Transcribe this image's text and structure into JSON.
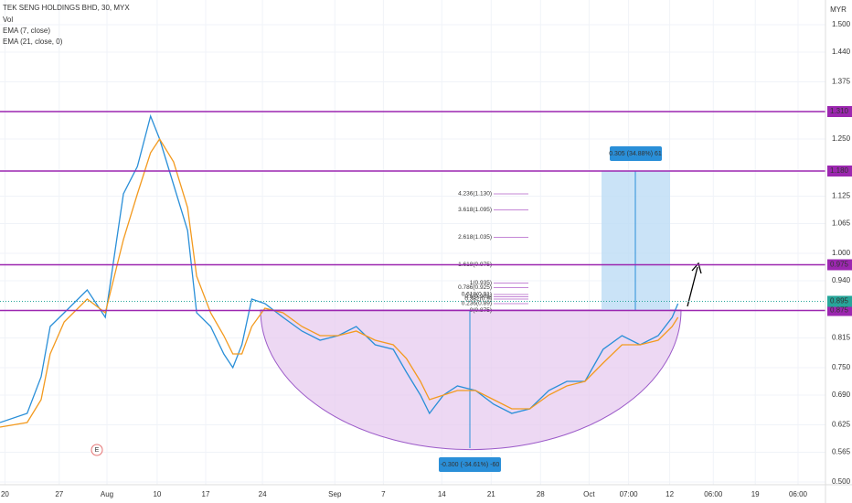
{
  "chart_data": {
    "type": "line",
    "title": "TEK SENG HOLDINGS BHD, 30, MYX",
    "indicators": [
      "Vol",
      "EMA (7, close)",
      "EMA (21, close, 0)"
    ],
    "currency": "MYR",
    "xlim": [
      0,
      100
    ],
    "ylim": [
      0.5,
      1.5
    ],
    "xticks": [
      {
        "value": 0.6,
        "label": "20"
      },
      {
        "value": 7.2,
        "label": "27"
      },
      {
        "value": 13,
        "label": "Aug"
      },
      {
        "value": 19.1,
        "label": "10"
      },
      {
        "value": 25,
        "label": "17"
      },
      {
        "value": 31.9,
        "label": "24"
      },
      {
        "value": 40.7,
        "label": "Sep"
      },
      {
        "value": 46.6,
        "label": "7"
      },
      {
        "value": 53.7,
        "label": "14"
      },
      {
        "value": 59.7,
        "label": "21"
      },
      {
        "value": 65.7,
        "label": "28"
      },
      {
        "value": 71.6,
        "label": "Oct"
      },
      {
        "value": 76.4,
        "label": "07:00"
      },
      {
        "value": 81.4,
        "label": "12"
      },
      {
        "value": 86.7,
        "label": "06:00"
      },
      {
        "value": 91.8,
        "label": "19"
      },
      {
        "value": 97,
        "label": "06:00"
      }
    ],
    "yticks": [
      {
        "value": 1.5,
        "label": "1.500"
      },
      {
        "value": 1.44,
        "label": "1.440"
      },
      {
        "value": 1.375,
        "label": "1.375"
      },
      {
        "value": 1.25,
        "label": "1.250"
      },
      {
        "value": 1.125,
        "label": "1.125"
      },
      {
        "value": 1.065,
        "label": "1.065"
      },
      {
        "value": 1,
        "label": "1.000"
      },
      {
        "value": 0.94,
        "label": "0.940"
      },
      {
        "value": 0.815,
        "label": "0.815"
      },
      {
        "value": 0.75,
        "label": "0.750"
      },
      {
        "value": 0.69,
        "label": "0.690"
      },
      {
        "value": 0.625,
        "label": "0.625"
      },
      {
        "value": 0.565,
        "label": "0.565"
      },
      {
        "value": 0.5,
        "label": "0.500"
      }
    ],
    "grid": true,
    "x": [
      0,
      3.3,
      5,
      6.1,
      7.8,
      10.6,
      12.8,
      15,
      16.7,
      18.3,
      19.4,
      21.1,
      22.8,
      23.9,
      25.6,
      27.2,
      28.3,
      29.4,
      30.6,
      32.2,
      34.4,
      36.7,
      38.9,
      41.1,
      43.3,
      45.6,
      47.8,
      49.4,
      51.1,
      52.2,
      53.9,
      55.6,
      57.8,
      60,
      62.2,
      64.4,
      66.7,
      68.9,
      71.1,
      73.3,
      75.6,
      77.8,
      80,
      81.7,
      82.4
    ],
    "series": [
      {
        "name": "EMA (7, close)",
        "color": "#2a8fd8",
        "values": [
          0.63,
          0.65,
          0.73,
          0.84,
          0.87,
          0.92,
          0.86,
          1.13,
          1.19,
          1.3,
          1.25,
          1.15,
          1.05,
          0.87,
          0.84,
          0.78,
          0.75,
          0.8,
          0.9,
          0.89,
          0.86,
          0.83,
          0.81,
          0.82,
          0.84,
          0.8,
          0.79,
          0.74,
          0.69,
          0.65,
          0.69,
          0.71,
          0.7,
          0.67,
          0.65,
          0.66,
          0.7,
          0.72,
          0.72,
          0.79,
          0.82,
          0.8,
          0.82,
          0.86,
          0.89
        ]
      },
      {
        "name": "EMA (21, close, 0)",
        "color": "#f39a1f",
        "values": [
          0.62,
          0.63,
          0.68,
          0.78,
          0.85,
          0.9,
          0.87,
          1.03,
          1.13,
          1.22,
          1.25,
          1.2,
          1.1,
          0.95,
          0.87,
          0.82,
          0.78,
          0.78,
          0.84,
          0.88,
          0.87,
          0.84,
          0.82,
          0.82,
          0.83,
          0.81,
          0.8,
          0.77,
          0.72,
          0.68,
          0.69,
          0.7,
          0.7,
          0.68,
          0.66,
          0.66,
          0.69,
          0.71,
          0.72,
          0.76,
          0.8,
          0.8,
          0.81,
          0.84,
          0.86
        ]
      }
    ],
    "levels": [
      {
        "value": 1.31,
        "label": "1.310"
      },
      {
        "value": 1.18,
        "label": "1.180"
      },
      {
        "value": 0.975,
        "label": "0.975"
      },
      {
        "value": 0.875,
        "label": "0.875"
      }
    ],
    "level_color": "#9c27b0",
    "last_price": {
      "value": 0.895,
      "label": "0.895",
      "color": "#26a69a"
    },
    "fib_levels": [
      {
        "value": 1.13,
        "label": "4.236(1.130)"
      },
      {
        "value": 1.095,
        "label": "3.618(1.095)"
      },
      {
        "value": 1.035,
        "label": "2.618(1.035)"
      },
      {
        "value": 0.975,
        "label": "1.618(0.975)"
      },
      {
        "value": 0.935,
        "label": "1(0.935)"
      },
      {
        "value": 0.925,
        "label": "0.786(0.925)"
      },
      {
        "value": 0.91,
        "label": "0.618(0.91)"
      },
      {
        "value": 0.905,
        "label": "0.5(0.905)"
      },
      {
        "value": 0.9,
        "label": "0.382(0.9)"
      },
      {
        "value": 0.89,
        "label": "0.236(0.89)"
      },
      {
        "value": 0.875,
        "label": "0(0.875)"
      }
    ],
    "annotations": [
      "0.305 (34.88%) 61",
      "-0.300 (-34.61%) -60",
      "E"
    ]
  }
}
